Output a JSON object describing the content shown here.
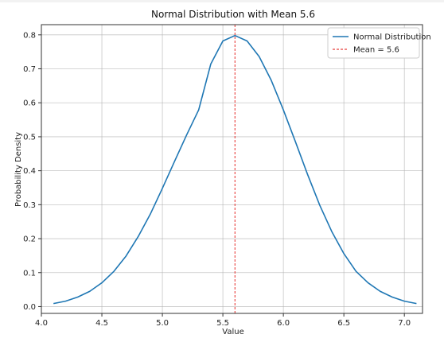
{
  "chart_data": {
    "type": "line",
    "title": "Normal Distribution with Mean 5.6",
    "xlabel": "Value",
    "ylabel": "Probability Density",
    "xlim": [
      4.0,
      7.15
    ],
    "ylim": [
      -0.02,
      0.83
    ],
    "x_ticks": [
      4.0,
      4.5,
      5.0,
      5.5,
      6.0,
      6.5,
      7.0
    ],
    "x_tick_labels": [
      "4.0",
      "4.5",
      "5.0",
      "5.5",
      "6.0",
      "6.5",
      "7.0"
    ],
    "y_ticks": [
      0.0,
      0.1,
      0.2,
      0.3,
      0.4,
      0.5,
      0.6,
      0.7,
      0.8
    ],
    "y_tick_labels": [
      "0.0",
      "0.1",
      "0.2",
      "0.3",
      "0.4",
      "0.5",
      "0.6",
      "0.7",
      "0.8"
    ],
    "grid": true,
    "legend_position": "top-right",
    "series": [
      {
        "name": "Normal Distribution",
        "color": "#1f77b4",
        "x": [
          4.1,
          4.2,
          4.3,
          4.4,
          4.5,
          4.6,
          4.7,
          4.8,
          4.9,
          5.0,
          5.1,
          5.2,
          5.3,
          5.4,
          5.5,
          5.6,
          5.7,
          5.8,
          5.9,
          6.0,
          6.1,
          6.2,
          6.3,
          6.4,
          6.5,
          6.6,
          6.7,
          6.8,
          6.9,
          7.0,
          7.1
        ],
        "y": [
          0.009,
          0.016,
          0.028,
          0.045,
          0.07,
          0.104,
          0.149,
          0.206,
          0.272,
          0.348,
          0.427,
          0.505,
          0.579,
          0.714,
          0.782,
          0.798,
          0.782,
          0.736,
          0.666,
          0.579,
          0.485,
          0.389,
          0.299,
          0.221,
          0.156,
          0.104,
          0.07,
          0.045,
          0.028,
          0.016,
          0.009
        ]
      }
    ],
    "reference_lines": [
      {
        "name": "Mean = 5.6",
        "orientation": "vertical",
        "x": 5.6,
        "color": "#e8413e",
        "style": "dashed"
      }
    ]
  }
}
